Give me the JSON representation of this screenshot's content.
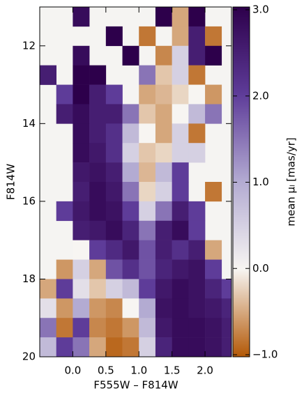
{
  "chart_data": {
    "type": "heatmap",
    "xlabel": "F555W – F814W",
    "ylabel": "F814W",
    "colorbar_label": "mean  μₗ [mas/yr]",
    "xlim": [
      -0.5,
      2.4
    ],
    "ylim": [
      20.0,
      11.0
    ],
    "xticks": [
      {
        "value": 0,
        "label": "0.0"
      },
      {
        "value": 0.5,
        "label": "0.5"
      },
      {
        "value": 1,
        "label": "1.0"
      },
      {
        "value": 1.5,
        "label": "1.5"
      },
      {
        "value": 2,
        "label": "2.0"
      }
    ],
    "yticks": [
      12,
      14,
      16,
      18,
      20
    ],
    "clim": [
      -1.0,
      3.0
    ],
    "cticks": [
      {
        "value": -1,
        "label": "−1.0"
      },
      {
        "value": 0,
        "label": "0.0"
      },
      {
        "value": 1,
        "label": "1.0"
      },
      {
        "value": 2,
        "label": "2.0"
      },
      {
        "value": 3,
        "label": "3.0"
      }
    ],
    "colormap": [
      "#b35806",
      "#f7f5f2",
      "#b3abd2",
      "#5e3c99",
      "#2d004b"
    ],
    "background": "#f5f4f2",
    "xbins": [
      -0.5,
      -0.25,
      0,
      0.25,
      0.5,
      0.75,
      1.0,
      1.25,
      1.5,
      1.75,
      2.0,
      2.25,
      2.5
    ],
    "ybins": [
      11.0,
      11.5,
      12.0,
      12.5,
      13.0,
      13.5,
      14.0,
      14.5,
      15.0,
      15.5,
      16.0,
      16.5,
      17.0,
      17.5,
      18.0,
      18.5,
      19.0,
      19.5,
      20.0
    ],
    "values": [
      [
        null,
        null,
        2.8,
        null,
        null,
        null,
        null,
        3.0,
        -0.5,
        3.0,
        null,
        null
      ],
      [
        null,
        null,
        null,
        null,
        3.0,
        null,
        -0.8,
        null,
        -0.5,
        2.5,
        -0.8,
        null
      ],
      [
        null,
        null,
        2.8,
        null,
        null,
        3.0,
        null,
        -0.7,
        0.5,
        2.5,
        3.0,
        null
      ],
      [
        2.5,
        null,
        3.0,
        3.0,
        null,
        null,
        1.5,
        -0.3,
        0.5,
        -0.8,
        null,
        null
      ],
      [
        null,
        2.0,
        3.0,
        2.5,
        2.0,
        null,
        -0.5,
        -0.4,
        -0.2,
        0.0,
        -0.6,
        null
      ],
      [
        null,
        2.5,
        2.8,
        2.5,
        2.5,
        1.5,
        -0.3,
        -0.5,
        0.0,
        0.8,
        1.5,
        null
      ],
      [
        null,
        null,
        2.8,
        2.5,
        2.2,
        0.8,
        0.0,
        -0.5,
        0.5,
        -0.8,
        null,
        null
      ],
      [
        null,
        null,
        2.8,
        2.6,
        2.2,
        0.5,
        -0.3,
        -0.2,
        0.5,
        0.5,
        null,
        null
      ],
      [
        null,
        null,
        2.6,
        2.7,
        2.5,
        1.0,
        -0.4,
        0.8,
        2.0,
        null,
        null,
        null
      ],
      [
        null,
        null,
        2.5,
        2.8,
        2.6,
        1.5,
        -0.2,
        0.5,
        2.0,
        null,
        -0.8,
        null
      ],
      [
        null,
        2.0,
        2.6,
        2.8,
        2.7,
        2.0,
        0.5,
        1.5,
        2.5,
        2.0,
        null,
        null
      ],
      [
        null,
        null,
        2.5,
        2.6,
        2.8,
        2.4,
        1.5,
        2.5,
        2.8,
        2.0,
        null,
        null
      ],
      [
        null,
        null,
        0.0,
        2.0,
        2.3,
        2.6,
        1.8,
        2.5,
        2.2,
        2.5,
        -0.5,
        null
      ],
      [
        null,
        -0.6,
        0.5,
        -0.5,
        1.8,
        2.2,
        1.8,
        2.4,
        2.6,
        2.7,
        2.0,
        null
      ],
      [
        -0.5,
        2.0,
        0.3,
        -0.3,
        0.5,
        0.8,
        2.0,
        2.6,
        2.8,
        2.7,
        2.4,
        2.0
      ],
      [
        0.3,
        -0.6,
        1.0,
        -0.6,
        -0.7,
        0.0,
        1.0,
        2.7,
        2.8,
        2.7,
        2.6,
        2.4
      ],
      [
        1.5,
        -0.8,
        2.0,
        -0.7,
        -0.8,
        -0.6,
        0.8,
        2.6,
        2.8,
        2.8,
        2.7,
        2.5
      ],
      [
        0.8,
        2.0,
        1.5,
        -0.5,
        -0.9,
        -0.8,
        0.5,
        2.4,
        2.8,
        2.8,
        2.7,
        2.5
      ]
    ]
  }
}
